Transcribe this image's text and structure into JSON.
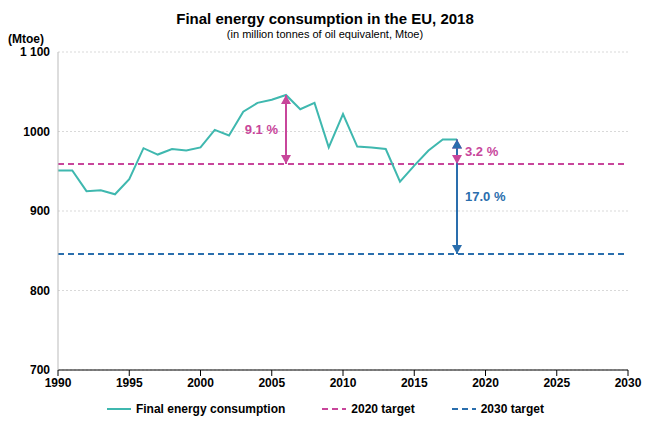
{
  "chart_data": {
    "type": "line",
    "title": "Final energy consumption in the EU, 2018",
    "subtitle": "(in million tonnes of oil equivalent, Mtoe)",
    "y_label": "(Mtoe)",
    "x": [
      1990,
      1991,
      1992,
      1993,
      1994,
      1995,
      1996,
      1997,
      1998,
      1999,
      2000,
      2001,
      2002,
      2003,
      2004,
      2005,
      2006,
      2007,
      2008,
      2009,
      2010,
      2011,
      2012,
      2013,
      2014,
      2015,
      2016,
      2017,
      2018
    ],
    "series": [
      {
        "name": "Final energy consumption",
        "color": "#3fb8af",
        "line_style": "solid",
        "values": [
          951,
          951,
          925,
          926,
          921,
          940,
          979,
          971,
          978,
          976,
          980,
          1002,
          995,
          1025,
          1036,
          1040,
          1046,
          1028,
          1036,
          980,
          1022,
          981,
          980,
          978,
          937,
          957,
          976,
          990,
          990
        ]
      }
    ],
    "reference_lines": [
      {
        "name": "2020 target",
        "value": 959,
        "color": "#c8469b",
        "line_style": "dashed"
      },
      {
        "name": "2030 target",
        "value": 846,
        "color": "#2a6ead",
        "line_style": "dashed"
      }
    ],
    "annotations": [
      {
        "text": "9.1 %",
        "x": 2006,
        "y_from": 1046,
        "y_to": 959,
        "color": "#c8469b"
      },
      {
        "text": "3.2 %",
        "x": 2018,
        "y_from": 990,
        "y_to": 959,
        "color": "#c8469b"
      },
      {
        "text": "17.0 %",
        "x": 2018,
        "y_from": 990,
        "y_to": 846,
        "color": "#2a6ead"
      }
    ],
    "xlim": [
      1990,
      2030
    ],
    "xticks": [
      1990,
      1995,
      2000,
      2005,
      2010,
      2015,
      2020,
      2025,
      2030
    ],
    "ylim": [
      700,
      1100
    ],
    "yticks": [
      700,
      800,
      900,
      1000,
      {
        "value": 1100,
        "label": "1 100"
      }
    ],
    "grid": true
  }
}
